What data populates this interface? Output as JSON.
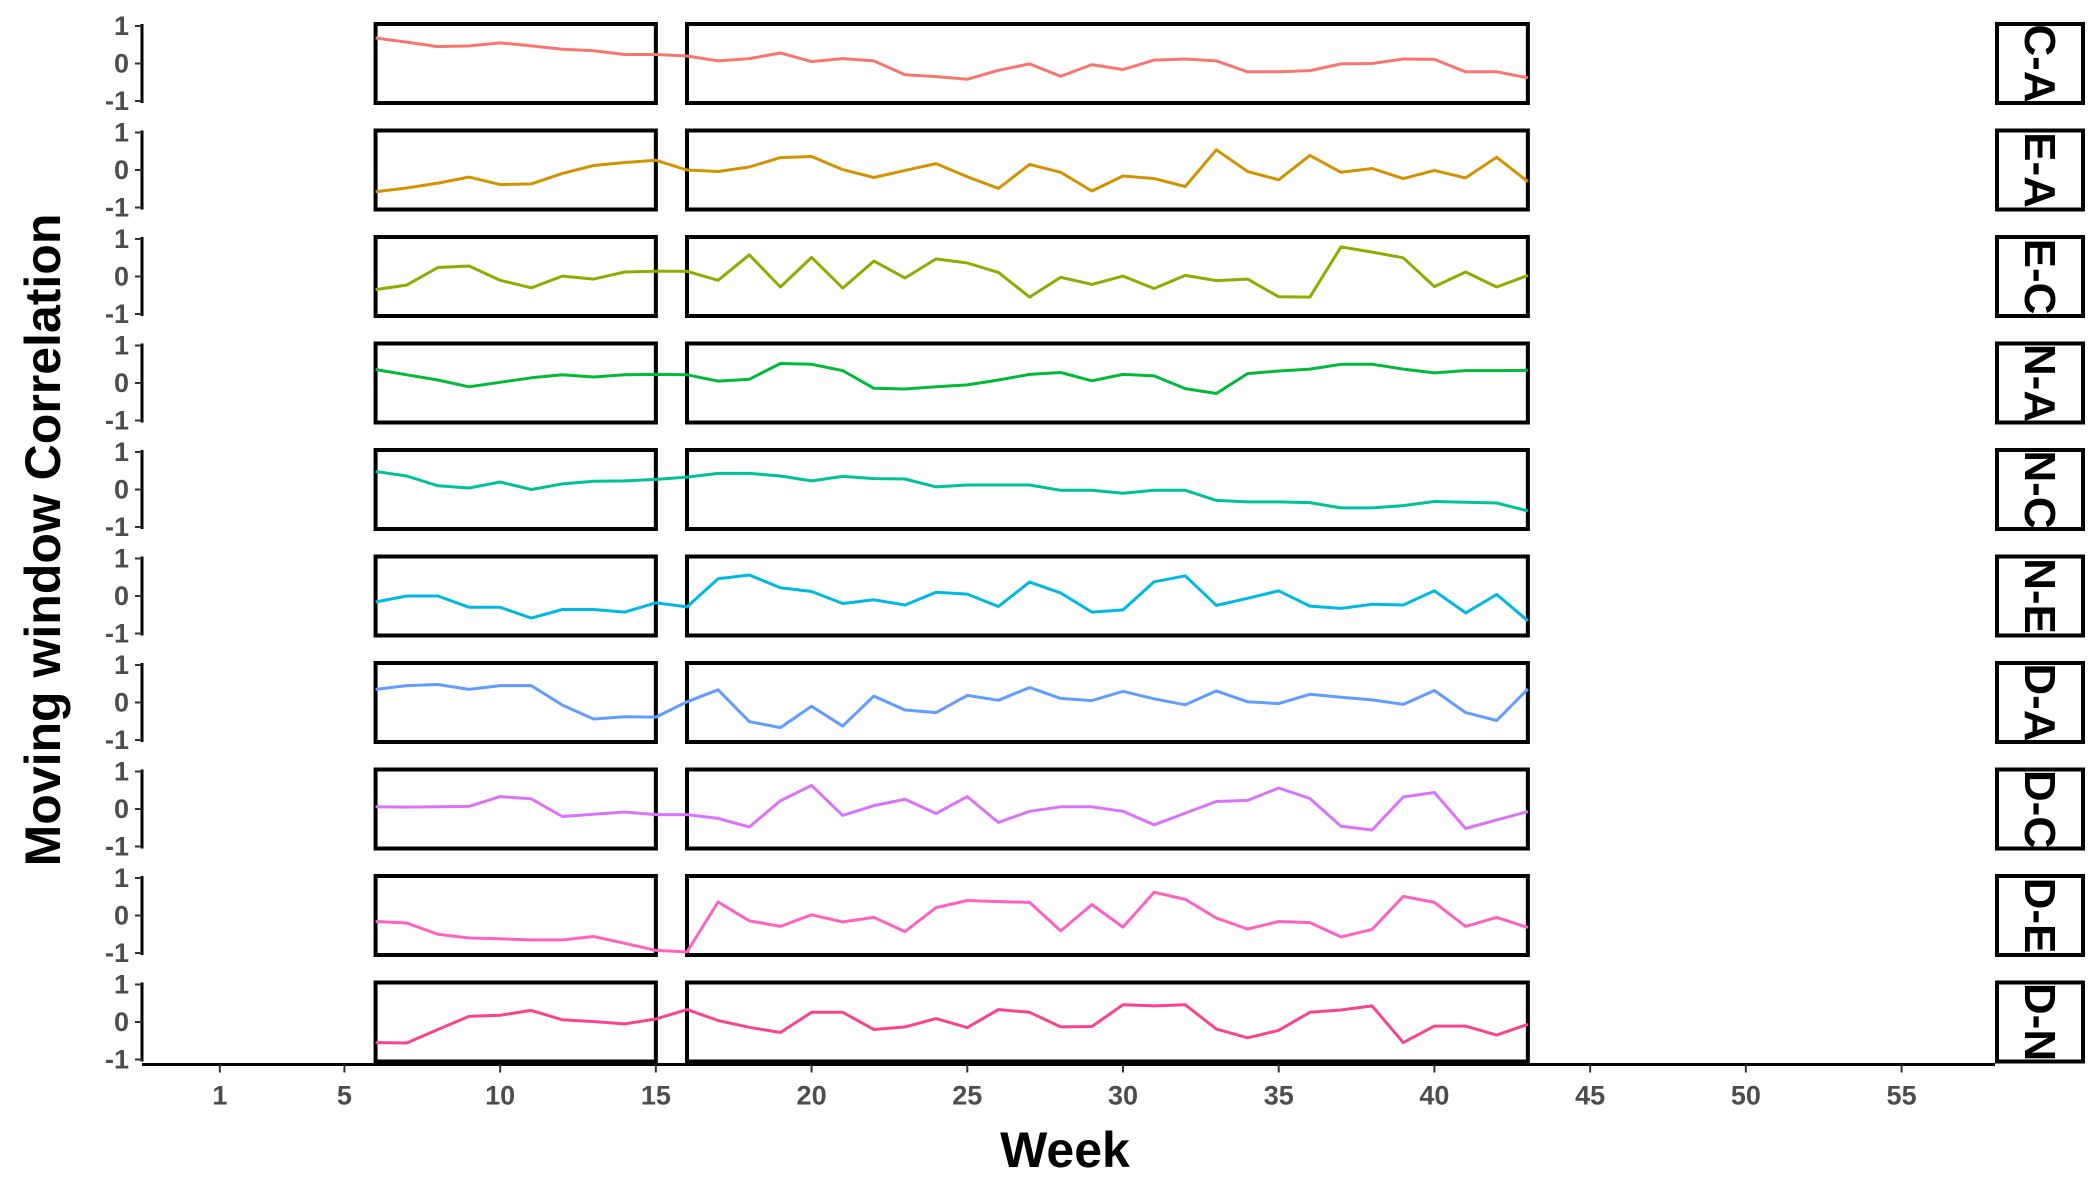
{
  "chart_data": {
    "type": "line",
    "xlabel": "Week",
    "ylabel": "Moving window Correlation",
    "xlim": [
      -1.5,
      58
    ],
    "ylim": [
      -1,
      1
    ],
    "x_ticks": [
      1,
      5,
      10,
      15,
      20,
      25,
      30,
      35,
      40,
      45,
      50,
      55
    ],
    "y_ticks": [
      1,
      0,
      -1
    ],
    "x": [
      6,
      7,
      8,
      9,
      10,
      11,
      12,
      13,
      14,
      15,
      16,
      17,
      18,
      19,
      20,
      21,
      22,
      23,
      24,
      25,
      26,
      27,
      28,
      29,
      30,
      31,
      32,
      33,
      34,
      35,
      36,
      37,
      38,
      39,
      40,
      41,
      42,
      43
    ],
    "time_windows": [
      [
        6,
        15
      ],
      [
        16,
        43
      ]
    ],
    "grid": false,
    "legend": "none",
    "facet_strip_position": "right",
    "series": [
      {
        "name": "C-A",
        "color": "#F8766D",
        "values": [
          0.68,
          0.57,
          0.45,
          0.47,
          0.55,
          0.47,
          0.38,
          0.34,
          0.24,
          0.24,
          0.2,
          0.07,
          0.13,
          0.28,
          0.05,
          0.13,
          0.07,
          -0.3,
          -0.35,
          -0.42,
          -0.18,
          -0.01,
          -0.34,
          -0.03,
          -0.16,
          0.09,
          0.12,
          0.07,
          -0.22,
          -0.22,
          -0.19,
          -0.01,
          0.0,
          0.12,
          0.11,
          -0.22,
          -0.22,
          -0.38
        ]
      },
      {
        "name": "E-A",
        "color": "#D39200",
        "values": [
          -0.58,
          -0.48,
          -0.35,
          -0.19,
          -0.39,
          -0.37,
          -0.09,
          0.12,
          0.2,
          0.26,
          0.0,
          -0.04,
          0.08,
          0.33,
          0.36,
          0.01,
          -0.2,
          -0.01,
          0.17,
          -0.18,
          -0.49,
          0.15,
          -0.06,
          -0.56,
          -0.16,
          -0.23,
          -0.44,
          0.54,
          -0.04,
          -0.26,
          0.39,
          -0.06,
          0.04,
          -0.23,
          -0.01,
          -0.21,
          0.34,
          -0.31
        ]
      },
      {
        "name": "E-C",
        "color": "#93AA00",
        "values": [
          -0.35,
          -0.23,
          0.24,
          0.28,
          -0.1,
          -0.3,
          0.01,
          -0.07,
          0.12,
          0.14,
          0.14,
          -0.1,
          0.58,
          -0.28,
          0.51,
          -0.31,
          0.41,
          -0.04,
          0.47,
          0.36,
          0.11,
          -0.55,
          -0.02,
          -0.21,
          0.01,
          -0.32,
          0.03,
          -0.11,
          -0.07,
          -0.54,
          -0.55,
          0.79,
          0.65,
          0.5,
          -0.27,
          0.12,
          -0.28,
          0.03
        ]
      },
      {
        "name": "N-A",
        "color": "#00BA38",
        "values": [
          0.36,
          0.22,
          0.08,
          -0.1,
          0.02,
          0.14,
          0.22,
          0.16,
          0.22,
          0.23,
          0.22,
          0.05,
          0.1,
          0.52,
          0.5,
          0.33,
          -0.14,
          -0.16,
          -0.1,
          -0.05,
          0.08,
          0.23,
          0.28,
          0.06,
          0.23,
          0.19,
          -0.15,
          -0.28,
          0.25,
          0.32,
          0.37,
          0.5,
          0.5,
          0.37,
          0.27,
          0.33,
          0.33,
          0.34
        ]
      },
      {
        "name": "N-C",
        "color": "#00C19F",
        "values": [
          0.48,
          0.36,
          0.1,
          0.04,
          0.2,
          0.0,
          0.15,
          0.22,
          0.23,
          0.27,
          0.33,
          0.43,
          0.43,
          0.36,
          0.23,
          0.35,
          0.29,
          0.28,
          0.07,
          0.12,
          0.12,
          0.12,
          -0.02,
          -0.02,
          -0.1,
          -0.02,
          -0.02,
          -0.29,
          -0.33,
          -0.33,
          -0.35,
          -0.49,
          -0.49,
          -0.43,
          -0.32,
          -0.34,
          -0.36,
          -0.57
        ]
      },
      {
        "name": "N-E",
        "color": "#00B9E3",
        "values": [
          -0.16,
          0.0,
          0.0,
          -0.3,
          -0.3,
          -0.59,
          -0.36,
          -0.36,
          -0.43,
          -0.18,
          -0.29,
          0.46,
          0.56,
          0.22,
          0.12,
          -0.2,
          -0.1,
          -0.24,
          0.1,
          0.05,
          -0.28,
          0.37,
          0.08,
          -0.43,
          -0.37,
          0.38,
          0.54,
          -0.25,
          -0.06,
          0.14,
          -0.27,
          -0.33,
          -0.22,
          -0.24,
          0.14,
          -0.45,
          0.04,
          -0.66
        ]
      },
      {
        "name": "D-A",
        "color": "#619CFF",
        "values": [
          0.35,
          0.45,
          0.48,
          0.35,
          0.45,
          0.45,
          -0.07,
          -0.44,
          -0.38,
          -0.39,
          0.02,
          0.34,
          -0.51,
          -0.67,
          -0.1,
          -0.63,
          0.17,
          -0.2,
          -0.27,
          0.19,
          0.06,
          0.4,
          0.11,
          0.05,
          0.3,
          0.1,
          -0.06,
          0.31,
          0.02,
          -0.03,
          0.22,
          0.14,
          0.07,
          -0.05,
          0.32,
          -0.27,
          -0.48,
          0.36
        ]
      },
      {
        "name": "D-C",
        "color": "#DB72FB",
        "values": [
          0.06,
          0.05,
          0.06,
          0.07,
          0.33,
          0.27,
          -0.2,
          -0.14,
          -0.08,
          -0.15,
          -0.15,
          -0.25,
          -0.48,
          0.22,
          0.63,
          -0.17,
          0.09,
          0.26,
          -0.12,
          0.33,
          -0.36,
          -0.06,
          0.06,
          0.06,
          -0.06,
          -0.42,
          -0.11,
          0.2,
          0.23,
          0.56,
          0.28,
          -0.46,
          -0.56,
          0.32,
          0.44,
          -0.52,
          -0.29,
          -0.07
        ]
      },
      {
        "name": "D-E",
        "color": "#FF61C3",
        "values": [
          -0.16,
          -0.2,
          -0.5,
          -0.6,
          -0.62,
          -0.65,
          -0.65,
          -0.56,
          -0.74,
          -0.93,
          -0.97,
          0.36,
          -0.14,
          -0.29,
          0.02,
          -0.17,
          -0.05,
          -0.43,
          0.21,
          0.4,
          0.37,
          0.35,
          -0.41,
          0.29,
          -0.31,
          0.62,
          0.43,
          -0.07,
          -0.36,
          -0.16,
          -0.19,
          -0.57,
          -0.37,
          0.51,
          0.35,
          -0.29,
          -0.05,
          -0.32
        ]
      },
      {
        "name": "D-N",
        "color": "#F8448F",
        "values": [
          -0.55,
          -0.56,
          -0.2,
          0.15,
          0.18,
          0.31,
          0.06,
          0.01,
          -0.05,
          0.08,
          0.33,
          0.04,
          -0.14,
          -0.28,
          0.26,
          0.26,
          -0.2,
          -0.13,
          0.09,
          -0.15,
          0.33,
          0.26,
          -0.13,
          -0.12,
          0.46,
          0.43,
          0.46,
          -0.19,
          -0.42,
          -0.22,
          0.26,
          0.32,
          0.43,
          -0.55,
          -0.11,
          -0.11,
          -0.35,
          -0.06
        ]
      }
    ]
  }
}
